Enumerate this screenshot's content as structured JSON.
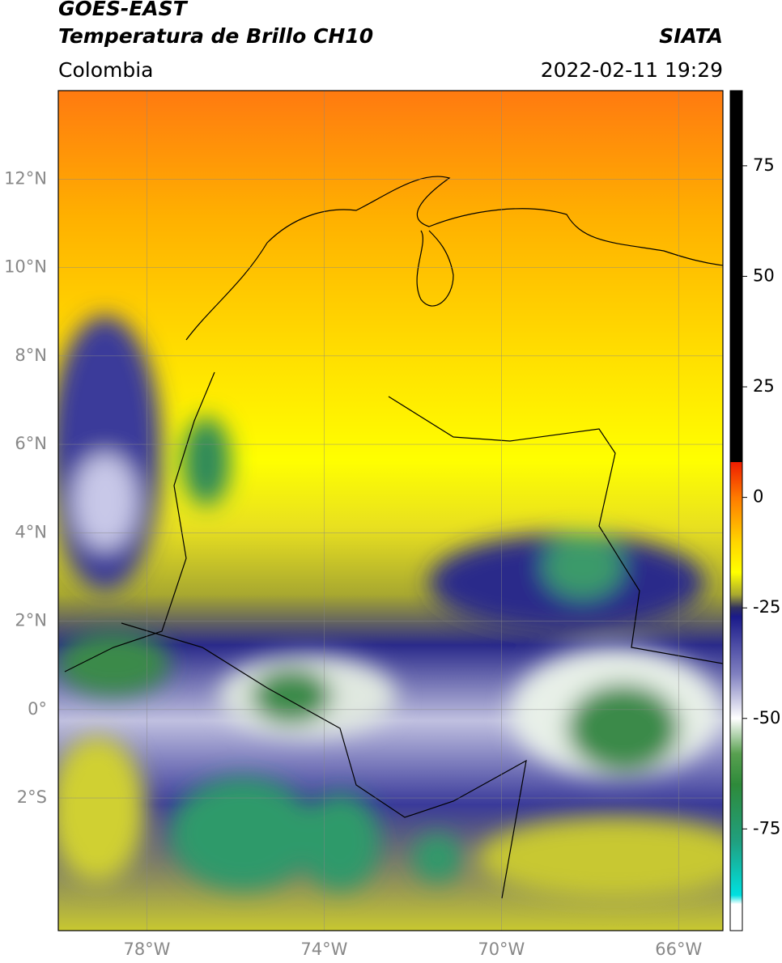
{
  "header": {
    "title": "GOES-EAST",
    "subtitle": "Temperatura de Brillo CH10",
    "source": "SIATA",
    "region": "Colombia",
    "timestamp": "2022-02-11 19:29"
  },
  "map": {
    "xlim": [
      -80,
      -65
    ],
    "ylim": [
      -5,
      14
    ],
    "xticks": [
      {
        "value": -78,
        "label": "78°W"
      },
      {
        "value": -74,
        "label": "74°W"
      },
      {
        "value": -70,
        "label": "70°W"
      },
      {
        "value": -66,
        "label": "66°W"
      }
    ],
    "yticks": [
      {
        "value": 12,
        "label": "12°N"
      },
      {
        "value": 10,
        "label": "10°N"
      },
      {
        "value": 8,
        "label": "8°N"
      },
      {
        "value": 6,
        "label": "6°N"
      },
      {
        "value": 4,
        "label": "4°N"
      },
      {
        "value": 2,
        "label": "2°N"
      },
      {
        "value": 0,
        "label": "0°"
      },
      {
        "value": -2,
        "label": "2°S"
      }
    ],
    "grid": true
  },
  "colorbar": {
    "clim": [
      -98,
      92
    ],
    "ticks": [
      75,
      50,
      25,
      0,
      -25,
      -50,
      -75
    ],
    "colormap": [
      [
        92,
        "#000000"
      ],
      [
        8,
        "#000000"
      ],
      [
        8,
        "#ee1c00"
      ],
      [
        0,
        "#ff7a00"
      ],
      [
        -10,
        "#ffd400"
      ],
      [
        -17,
        "#ffff00"
      ],
      [
        -22,
        "#a8a830"
      ],
      [
        -25,
        "#303060"
      ],
      [
        -27,
        "#1a1a8a"
      ],
      [
        -40,
        "#8080c0"
      ],
      [
        -50,
        "#ffffff"
      ],
      [
        -58,
        "#58a050"
      ],
      [
        -65,
        "#2e8a3a"
      ],
      [
        -78,
        "#20a080"
      ],
      [
        -90,
        "#00e0e0"
      ],
      [
        -92,
        "#ffffff"
      ],
      [
        -98,
        "#ffffff"
      ]
    ]
  }
}
